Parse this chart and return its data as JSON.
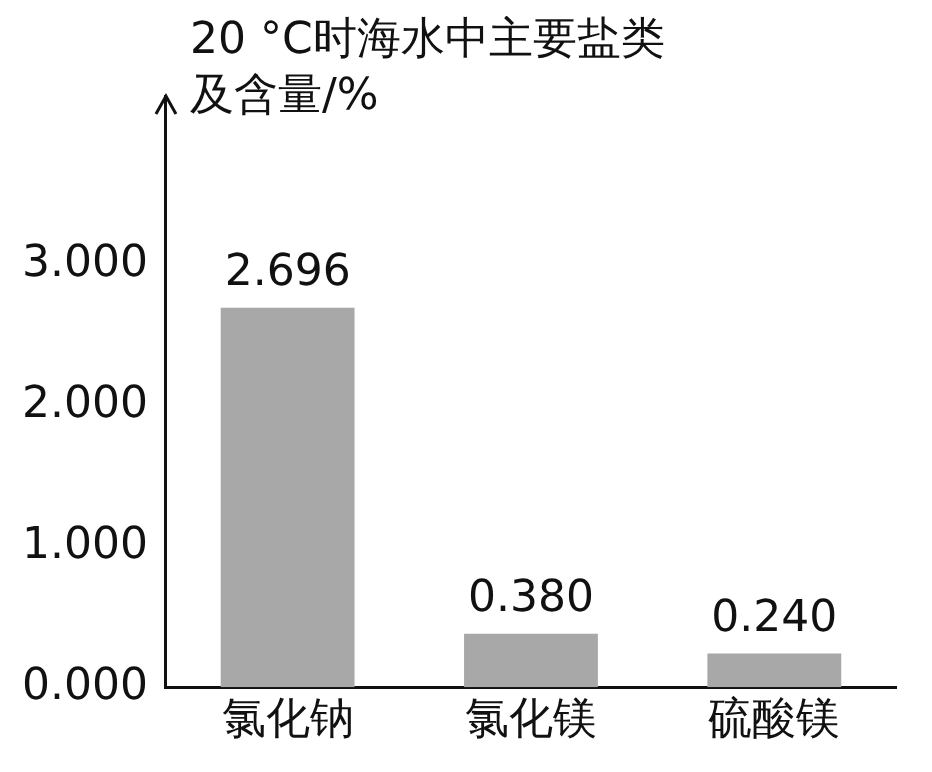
{
  "chart_data": {
    "type": "bar",
    "ylabel": "20 °C时海水中主要盐类及含量/%",
    "categories": [
      "氯化钠",
      "氯化镁",
      "硫酸镁"
    ],
    "values": [
      2.696,
      0.38,
      0.24
    ],
    "value_labels": [
      "2.696",
      "0.380",
      "0.240"
    ],
    "color": "#a8a8a8",
    "ylim": [
      0,
      4.2
    ],
    "yticks": [
      {
        "value": 0,
        "label": "0.000"
      },
      {
        "value": 1,
        "label": "1.000"
      },
      {
        "value": 2,
        "label": "2.000"
      },
      {
        "value": 3,
        "label": "3.000"
      }
    ],
    "grid": false,
    "legend": false
  }
}
